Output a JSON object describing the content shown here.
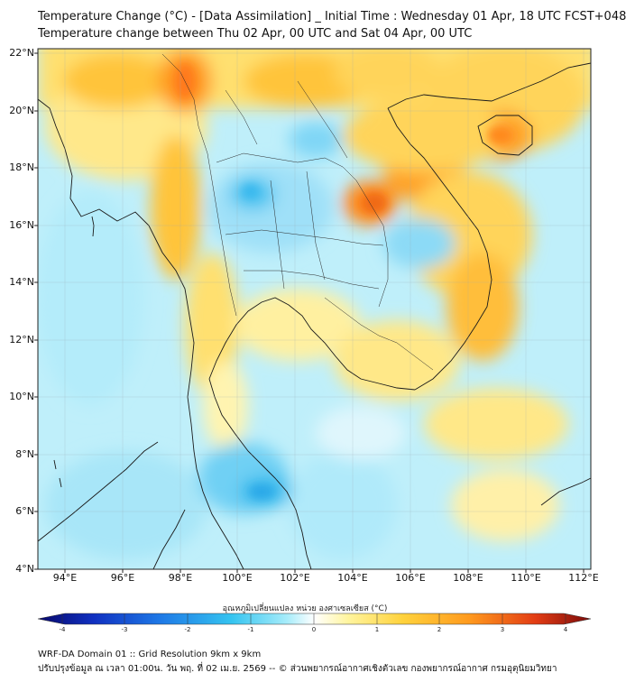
{
  "title_line1": "Temperature Change (°C) - [Data Assimilation] _ Initial Time : Wednesday 01 Apr, 18 UTC FCST+048",
  "title_line2": "Temperature change between Thu 02 Apr, 00 UTC and Sat 04 Apr, 00 UTC",
  "lat_labels": [
    "22°N",
    "20°N",
    "18°N",
    "16°N",
    "14°N",
    "12°N",
    "10°N",
    "8°N",
    "6°N",
    "4°N"
  ],
  "lon_labels": [
    "94°E",
    "96°E",
    "98°E",
    "100°E",
    "102°E",
    "104°E",
    "106°E",
    "108°E",
    "110°E",
    "112°E"
  ],
  "colorbar": {
    "label": "อุณหภูมิเปลี่ยนแปลง หน่วย องศาเซลเซียส (°C)",
    "ticks": [
      "-4",
      "-3",
      "-2",
      "-1",
      "0",
      "1",
      "2",
      "3",
      "4"
    ],
    "min": -4,
    "max": 4,
    "colors": [
      "#08086b",
      "#1030c0",
      "#1e78e6",
      "#35c4f0",
      "#a6ecfa",
      "#ffffff",
      "#fff5a0",
      "#ffd23c",
      "#ff9a1e",
      "#e23c14",
      "#7a0a0a"
    ]
  },
  "footer_line1": "WRF-DA Domain 01 :: Grid Resolution 9km x 9km",
  "footer_line2": "ปรับปรุงข้อมูล ณ เวลา 01:00น. วัน พฤ. ที่ 02 เม.ย. 2569 -- © ส่วนพยากรณ์อากาศเชิงตัวเลข กองพยากรณ์อากาศ กรมอุตุนิยมวิทยา"
}
